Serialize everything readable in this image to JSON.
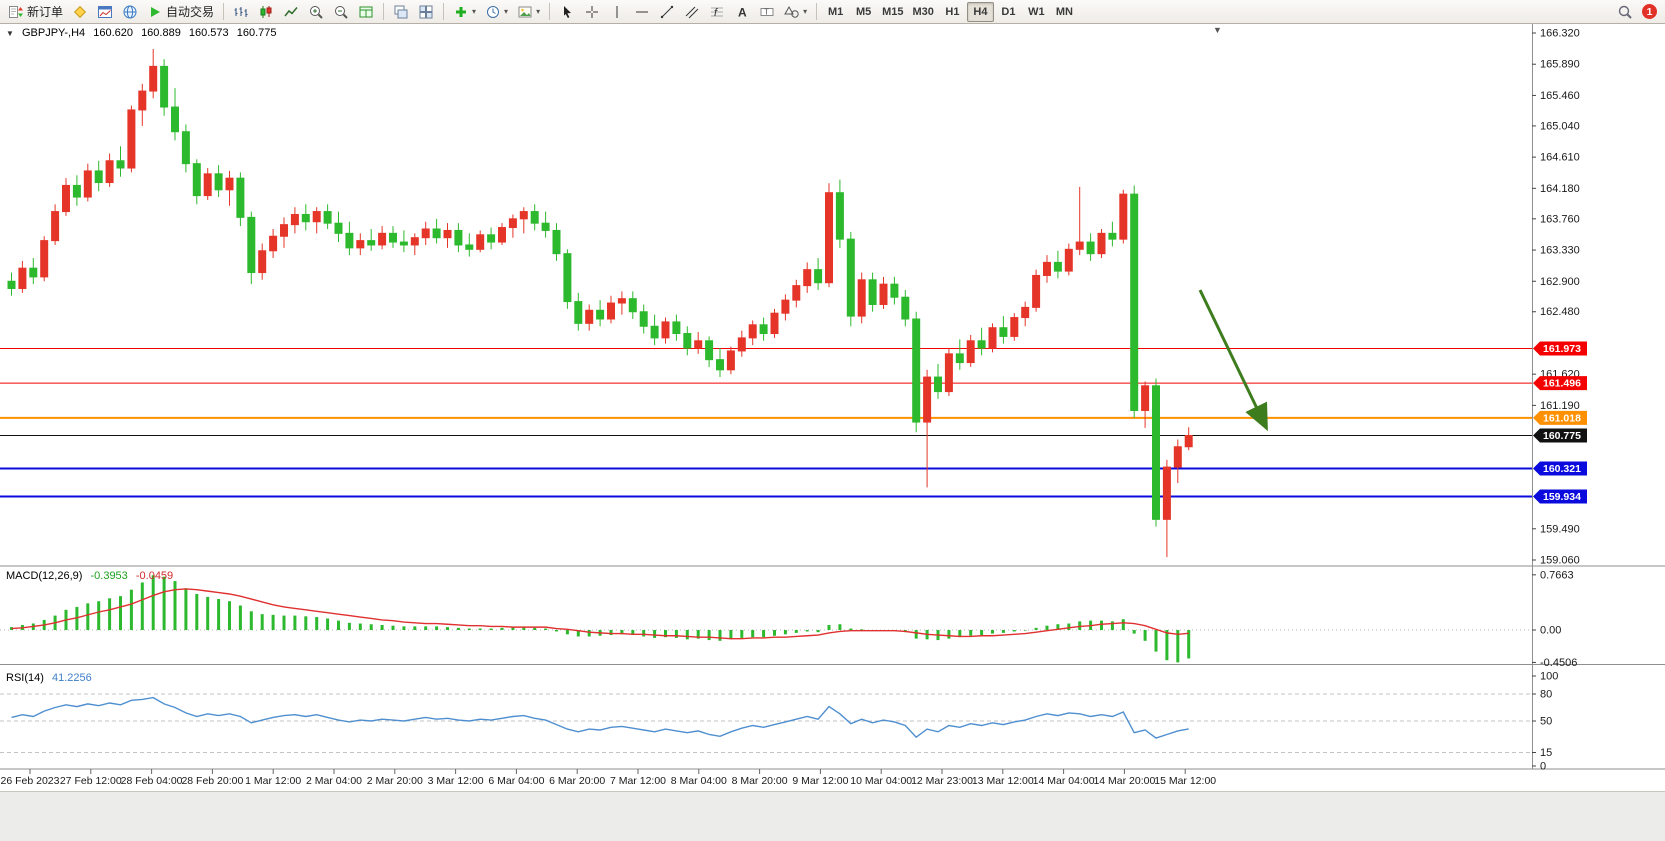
{
  "toolbar": {
    "new_order_label": "新订单",
    "autotrading_label": "自动交易",
    "timeframes": [
      "M1",
      "M5",
      "M15",
      "M30",
      "H1",
      "H4",
      "D1",
      "W1",
      "MN"
    ],
    "active_timeframe": "H4",
    "notification_count": "1"
  },
  "icons": {
    "dropdown_arrow": "▾",
    "collapse_triangle": "▼",
    "shift_marker": "▼"
  },
  "chart": {
    "symbol_period": "GBPJPY-,H4",
    "ohlc": {
      "open": "160.620",
      "high": "160.889",
      "low": "160.573",
      "close": "160.775"
    },
    "accent_colors": {
      "arrow": "#3e7d1e",
      "macd_signal": "#e03030",
      "rsi_line": "#4f8fd0"
    },
    "price_scale": {
      "min": 159.06,
      "max": 166.32,
      "labels": [
        "166.320",
        "165.890",
        "165.460",
        "165.040",
        "164.610",
        "164.180",
        "163.760",
        "163.330",
        "162.900",
        "162.480",
        "161.620",
        "161.190",
        "159.490",
        "159.060"
      ]
    },
    "hlines": [
      {
        "price": 161.973,
        "label": "161.973",
        "color": "#f50000",
        "width": 1
      },
      {
        "price": 161.496,
        "label": "161.496",
        "color": "#f50000",
        "width": 1
      },
      {
        "price": 161.018,
        "label": "161.018",
        "color": "#ff9000",
        "width": 2
      },
      {
        "price": 160.775,
        "label": "160.775",
        "color": "#111111",
        "width": 1
      },
      {
        "price": 160.321,
        "label": "160.321",
        "color": "#0b0bde",
        "width": 2
      },
      {
        "price": 159.934,
        "label": "159.934",
        "color": "#0b0bde",
        "width": 2
      }
    ],
    "time_labels": [
      "26 Feb 2023",
      "27 Feb 12:00",
      "28 Feb 04:00",
      "28 Feb 20:00",
      "1 Mar 12:00",
      "2 Mar 04:00",
      "2 Mar 20:00",
      "3 Mar 12:00",
      "6 Mar 04:00",
      "6 Mar 20:00",
      "7 Mar 12:00",
      "8 Mar 04:00",
      "8 Mar 20:00",
      "9 Mar 12:00",
      "10 Mar 04:00",
      "12 Mar 23:00",
      "13 Mar 12:00",
      "14 Mar 04:00",
      "14 Mar 20:00",
      "15 Mar 12:00"
    ]
  },
  "chart_data": {
    "type": "candlestick",
    "symbol": "GBPJPY-",
    "timeframe": "H4",
    "ylim": [
      159.06,
      166.32
    ],
    "up_color": "#e53528",
    "down_color": "#2db92d",
    "candles": [
      [
        162.9,
        163.02,
        162.7,
        162.8
      ],
      [
        162.8,
        163.18,
        162.74,
        163.08
      ],
      [
        163.08,
        163.22,
        162.86,
        162.96
      ],
      [
        162.96,
        163.52,
        162.9,
        163.46
      ],
      [
        163.46,
        163.96,
        163.4,
        163.86
      ],
      [
        163.86,
        164.32,
        163.8,
        164.22
      ],
      [
        164.22,
        164.36,
        163.94,
        164.06
      ],
      [
        164.06,
        164.52,
        164.0,
        164.42
      ],
      [
        164.42,
        164.56,
        164.14,
        164.26
      ],
      [
        164.26,
        164.66,
        164.2,
        164.56
      ],
      [
        164.56,
        164.76,
        164.34,
        164.46
      ],
      [
        164.46,
        165.32,
        164.4,
        165.26
      ],
      [
        165.26,
        165.62,
        165.04,
        165.52
      ],
      [
        165.52,
        166.1,
        165.42,
        165.86
      ],
      [
        165.86,
        165.96,
        165.18,
        165.3
      ],
      [
        165.3,
        165.56,
        164.84,
        164.96
      ],
      [
        164.96,
        165.06,
        164.4,
        164.52
      ],
      [
        164.52,
        164.58,
        163.96,
        164.08
      ],
      [
        164.08,
        164.46,
        164.02,
        164.38
      ],
      [
        164.38,
        164.5,
        164.06,
        164.16
      ],
      [
        164.16,
        164.42,
        163.94,
        164.32
      ],
      [
        164.32,
        164.4,
        163.66,
        163.78
      ],
      [
        163.78,
        163.86,
        162.86,
        163.02
      ],
      [
        163.02,
        163.42,
        162.92,
        163.32
      ],
      [
        163.32,
        163.62,
        163.22,
        163.52
      ],
      [
        163.52,
        163.78,
        163.36,
        163.68
      ],
      [
        163.68,
        163.92,
        163.56,
        163.82
      ],
      [
        163.82,
        163.96,
        163.6,
        163.72
      ],
      [
        163.72,
        163.92,
        163.56,
        163.86
      ],
      [
        163.86,
        163.96,
        163.62,
        163.7
      ],
      [
        163.7,
        163.86,
        163.44,
        163.56
      ],
      [
        163.56,
        163.72,
        163.26,
        163.36
      ],
      [
        163.36,
        163.56,
        163.26,
        163.46
      ],
      [
        163.46,
        163.62,
        163.32,
        163.4
      ],
      [
        163.4,
        163.66,
        163.34,
        163.56
      ],
      [
        163.56,
        163.66,
        163.36,
        163.44
      ],
      [
        163.44,
        163.6,
        163.3,
        163.4
      ],
      [
        163.4,
        163.56,
        163.26,
        163.5
      ],
      [
        163.5,
        163.72,
        163.4,
        163.62
      ],
      [
        163.62,
        163.76,
        163.42,
        163.5
      ],
      [
        163.5,
        163.7,
        163.36,
        163.6
      ],
      [
        163.6,
        163.7,
        163.3,
        163.4
      ],
      [
        163.4,
        163.56,
        163.24,
        163.34
      ],
      [
        163.34,
        163.6,
        163.3,
        163.54
      ],
      [
        163.54,
        163.64,
        163.34,
        163.44
      ],
      [
        163.44,
        163.7,
        163.4,
        163.64
      ],
      [
        163.64,
        163.82,
        163.5,
        163.76
      ],
      [
        163.76,
        163.92,
        163.56,
        163.86
      ],
      [
        163.86,
        163.96,
        163.6,
        163.7
      ],
      [
        163.7,
        163.86,
        163.5,
        163.6
      ],
      [
        163.6,
        163.7,
        163.18,
        163.28
      ],
      [
        163.28,
        163.34,
        162.52,
        162.62
      ],
      [
        162.62,
        162.74,
        162.22,
        162.32
      ],
      [
        162.32,
        162.58,
        162.22,
        162.5
      ],
      [
        162.5,
        162.64,
        162.28,
        162.38
      ],
      [
        162.38,
        162.7,
        162.32,
        162.6
      ],
      [
        162.6,
        162.76,
        162.44,
        162.66
      ],
      [
        162.66,
        162.76,
        162.38,
        162.48
      ],
      [
        162.48,
        162.58,
        162.18,
        162.28
      ],
      [
        162.28,
        162.44,
        162.02,
        162.12
      ],
      [
        162.12,
        162.4,
        162.04,
        162.34
      ],
      [
        162.34,
        162.44,
        162.08,
        162.18
      ],
      [
        162.18,
        162.28,
        161.88,
        161.98
      ],
      [
        161.98,
        162.2,
        161.9,
        162.08
      ],
      [
        162.08,
        162.14,
        161.72,
        161.82
      ],
      [
        161.82,
        161.98,
        161.58,
        161.68
      ],
      [
        161.68,
        162.0,
        161.62,
        161.94
      ],
      [
        161.94,
        162.22,
        161.86,
        162.12
      ],
      [
        162.12,
        162.36,
        162.02,
        162.3
      ],
      [
        162.3,
        162.4,
        162.08,
        162.18
      ],
      [
        162.18,
        162.52,
        162.12,
        162.46
      ],
      [
        162.46,
        162.72,
        162.36,
        162.64
      ],
      [
        162.64,
        162.92,
        162.54,
        162.84
      ],
      [
        162.84,
        163.16,
        162.74,
        163.06
      ],
      [
        163.06,
        163.22,
        162.78,
        162.88
      ],
      [
        162.88,
        164.25,
        162.82,
        164.12
      ],
      [
        164.12,
        164.3,
        163.36,
        163.48
      ],
      [
        163.48,
        163.58,
        162.28,
        162.42
      ],
      [
        162.42,
        163.02,
        162.32,
        162.92
      ],
      [
        162.92,
        163.02,
        162.48,
        162.58
      ],
      [
        162.58,
        162.96,
        162.52,
        162.86
      ],
      [
        162.86,
        162.96,
        162.58,
        162.68
      ],
      [
        162.68,
        162.78,
        162.28,
        162.38
      ],
      [
        162.38,
        162.48,
        160.82,
        160.96
      ],
      [
        160.96,
        161.68,
        160.06,
        161.58
      ],
      [
        161.58,
        161.76,
        161.28,
        161.38
      ],
      [
        161.38,
        161.98,
        161.32,
        161.9
      ],
      [
        161.9,
        162.1,
        161.68,
        161.78
      ],
      [
        161.78,
        162.16,
        161.72,
        162.08
      ],
      [
        162.08,
        162.26,
        161.88,
        161.98
      ],
      [
        161.98,
        162.32,
        161.92,
        162.26
      ],
      [
        162.26,
        162.42,
        162.04,
        162.14
      ],
      [
        162.14,
        162.46,
        162.08,
        162.4
      ],
      [
        162.4,
        162.62,
        162.28,
        162.54
      ],
      [
        162.54,
        163.06,
        162.48,
        162.98
      ],
      [
        162.98,
        163.26,
        162.88,
        163.16
      ],
      [
        163.16,
        163.32,
        162.94,
        163.04
      ],
      [
        163.04,
        163.42,
        162.98,
        163.34
      ],
      [
        163.34,
        164.2,
        163.26,
        163.44
      ],
      [
        163.44,
        163.56,
        163.18,
        163.28
      ],
      [
        163.28,
        163.62,
        163.22,
        163.56
      ],
      [
        163.56,
        163.72,
        163.38,
        163.48
      ],
      [
        163.48,
        164.16,
        163.42,
        164.1
      ],
      [
        164.1,
        164.22,
        161.02,
        161.12
      ],
      [
        161.12,
        161.52,
        160.88,
        161.46
      ],
      [
        161.46,
        161.56,
        159.52,
        159.62
      ],
      [
        159.62,
        160.44,
        159.1,
        160.34
      ],
      [
        160.34,
        160.72,
        160.12,
        160.62
      ],
      [
        160.62,
        160.889,
        160.573,
        160.775
      ]
    ],
    "indicators": {
      "macd": {
        "label": "MACD(12,26,9)",
        "value_main": "-0.3953",
        "value_signal": "-0.0459",
        "axis_labels": [
          "0.7663",
          "0.00",
          "-0.4506"
        ],
        "ylim": [
          -0.4506,
          0.7663
        ],
        "histogram": [
          0.04,
          0.07,
          0.09,
          0.14,
          0.2,
          0.28,
          0.32,
          0.37,
          0.4,
          0.44,
          0.47,
          0.56,
          0.66,
          0.76,
          0.74,
          0.68,
          0.58,
          0.5,
          0.46,
          0.43,
          0.4,
          0.34,
          0.26,
          0.22,
          0.21,
          0.2,
          0.2,
          0.19,
          0.18,
          0.16,
          0.13,
          0.1,
          0.09,
          0.08,
          0.07,
          0.06,
          0.05,
          0.05,
          0.05,
          0.05,
          0.04,
          0.03,
          0.02,
          0.02,
          0.02,
          0.03,
          0.04,
          0.04,
          0.03,
          0.02,
          -0.02,
          -0.06,
          -0.09,
          -0.09,
          -0.08,
          -0.07,
          -0.06,
          -0.07,
          -0.09,
          -0.11,
          -0.1,
          -0.11,
          -0.13,
          -0.12,
          -0.14,
          -0.15,
          -0.13,
          -0.11,
          -0.1,
          -0.1,
          -0.08,
          -0.06,
          -0.04,
          -0.02,
          -0.03,
          0.07,
          0.08,
          0.02,
          0.01,
          0.0,
          0.0,
          -0.01,
          -0.03,
          -0.12,
          -0.13,
          -0.14,
          -0.12,
          -0.1,
          -0.08,
          -0.07,
          -0.05,
          -0.04,
          -0.02,
          0.0,
          0.03,
          0.06,
          0.08,
          0.09,
          0.12,
          0.13,
          0.13,
          0.12,
          0.15,
          -0.05,
          -0.15,
          -0.3,
          -0.42,
          -0.45,
          -0.3953
        ],
        "signal": [
          0.02,
          0.03,
          0.05,
          0.07,
          0.1,
          0.14,
          0.17,
          0.21,
          0.25,
          0.28,
          0.32,
          0.36,
          0.42,
          0.48,
          0.53,
          0.56,
          0.57,
          0.56,
          0.54,
          0.52,
          0.5,
          0.47,
          0.43,
          0.39,
          0.35,
          0.32,
          0.3,
          0.28,
          0.26,
          0.24,
          0.22,
          0.2,
          0.18,
          0.16,
          0.14,
          0.13,
          0.11,
          0.1,
          0.09,
          0.09,
          0.08,
          0.07,
          0.06,
          0.06,
          0.05,
          0.05,
          0.04,
          0.04,
          0.04,
          0.04,
          0.02,
          0.01,
          -0.01,
          -0.03,
          -0.04,
          -0.05,
          -0.05,
          -0.06,
          -0.06,
          -0.07,
          -0.08,
          -0.08,
          -0.09,
          -0.1,
          -0.1,
          -0.11,
          -0.12,
          -0.12,
          -0.11,
          -0.11,
          -0.1,
          -0.1,
          -0.09,
          -0.08,
          -0.07,
          -0.04,
          -0.02,
          -0.01,
          -0.01,
          -0.01,
          -0.01,
          -0.01,
          -0.02,
          -0.04,
          -0.06,
          -0.07,
          -0.08,
          -0.09,
          -0.09,
          -0.08,
          -0.08,
          -0.07,
          -0.06,
          -0.05,
          -0.03,
          -0.01,
          0.01,
          0.03,
          0.05,
          0.06,
          0.08,
          0.09,
          0.1,
          0.09,
          0.06,
          0.01,
          -0.04,
          -0.06,
          -0.0459
        ]
      },
      "rsi": {
        "label": "RSI(14)",
        "value": "41.2256",
        "axis_labels": [
          "100",
          "80",
          "50",
          "15",
          "0"
        ],
        "levels": [
          80,
          50,
          15
        ],
        "ylim": [
          0,
          100
        ],
        "values": [
          54,
          57,
          55,
          61,
          65,
          68,
          66,
          69,
          67,
          70,
          68,
          73,
          74,
          76,
          69,
          65,
          59,
          55,
          58,
          56,
          58,
          55,
          48,
          51,
          54,
          56,
          57,
          55,
          57,
          54,
          51,
          49,
          51,
          50,
          52,
          51,
          50,
          52,
          54,
          52,
          53,
          51,
          50,
          52,
          51,
          53,
          55,
          56,
          53,
          51,
          46,
          41,
          38,
          41,
          40,
          43,
          44,
          42,
          40,
          38,
          41,
          39,
          37,
          39,
          35,
          33,
          38,
          42,
          45,
          43,
          46,
          49,
          52,
          55,
          52,
          66,
          58,
          47,
          52,
          48,
          51,
          49,
          45,
          32,
          41,
          38,
          45,
          43,
          47,
          45,
          48,
          46,
          49,
          51,
          55,
          58,
          56,
          59,
          58,
          55,
          57,
          55,
          60,
          37,
          40,
          31,
          35,
          39,
          41.2256
        ]
      }
    }
  }
}
